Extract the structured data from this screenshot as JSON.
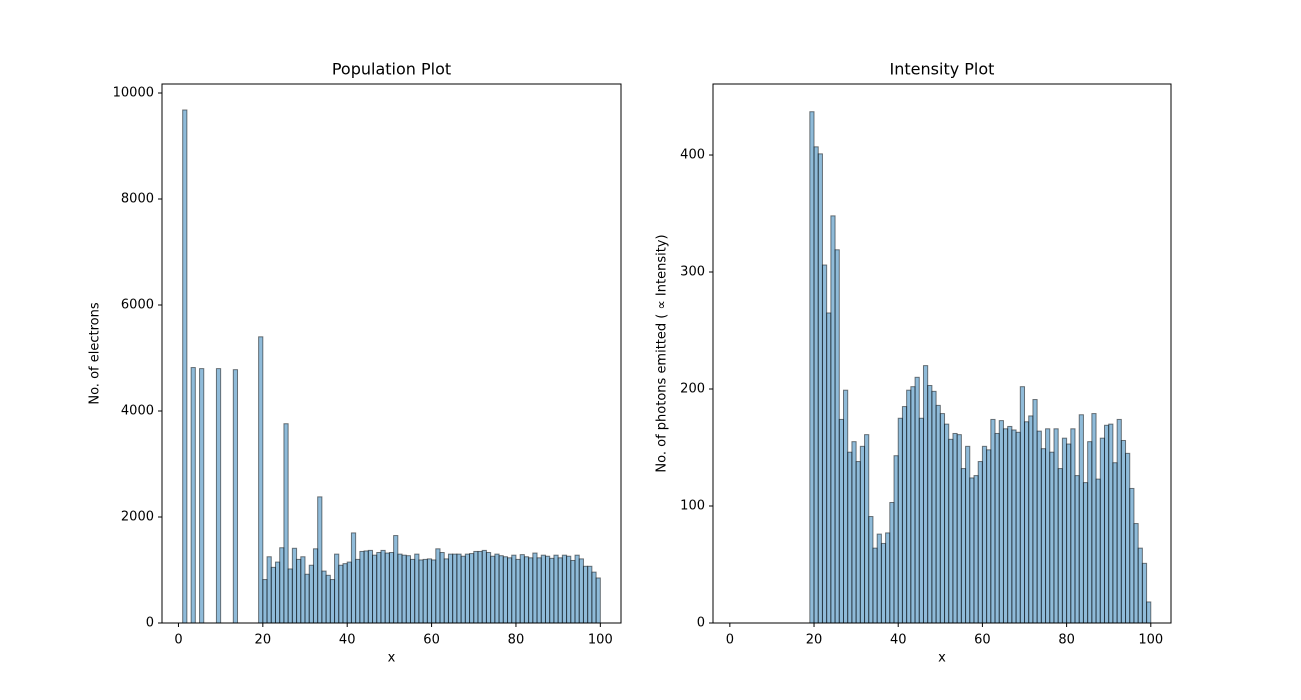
{
  "chart_data": [
    {
      "type": "histogram",
      "title": "Population Plot",
      "xlabel": "x",
      "ylabel": "No. of electrons",
      "bins": [
        0,
        1,
        2,
        3,
        4,
        5,
        6,
        7,
        8,
        9,
        10,
        11,
        12,
        13,
        14,
        15,
        16,
        17,
        18,
        19,
        20,
        21,
        22,
        23,
        24,
        25,
        26,
        27,
        28,
        29,
        30,
        31,
        32,
        33,
        34,
        35,
        36,
        37,
        38,
        39,
        40,
        41,
        42,
        43,
        44,
        45,
        46,
        47,
        48,
        49,
        50,
        51,
        52,
        53,
        54,
        55,
        56,
        57,
        58,
        59,
        60,
        61,
        62,
        63,
        64,
        65,
        66,
        67,
        68,
        69,
        70,
        71,
        72,
        73,
        74,
        75,
        76,
        77,
        78,
        79,
        80,
        81,
        82,
        83,
        84,
        85,
        86,
        87,
        88,
        89,
        90,
        91,
        92,
        93,
        94,
        95,
        96,
        97,
        98,
        99,
        100
      ],
      "values": [
        0,
        9680,
        0,
        4820,
        0,
        4800,
        0,
        0,
        0,
        4800,
        0,
        0,
        0,
        4780,
        0,
        0,
        0,
        0,
        0,
        5400,
        820,
        1250,
        1050,
        1150,
        1420,
        3760,
        1020,
        1410,
        1200,
        1250,
        920,
        1090,
        1400,
        2380,
        980,
        900,
        820,
        1300,
        1090,
        1120,
        1150,
        1700,
        1200,
        1350,
        1360,
        1370,
        1280,
        1330,
        1370,
        1320,
        1330,
        1650,
        1300,
        1280,
        1270,
        1200,
        1300,
        1190,
        1200,
        1210,
        1190,
        1400,
        1330,
        1210,
        1300,
        1300,
        1300,
        1260,
        1300,
        1310,
        1350,
        1350,
        1370,
        1330,
        1260,
        1300,
        1270,
        1250,
        1230,
        1280,
        1200,
        1290,
        1250,
        1230,
        1320,
        1230,
        1280,
        1260,
        1220,
        1280,
        1230,
        1280,
        1260,
        1180,
        1280,
        1210,
        1070,
        1070,
        960,
        850
      ],
      "color": "#1f77b4",
      "alpha": 0.5,
      "edgecolor": "#000000",
      "xlim": [
        -3.9,
        104.9
      ],
      "xticks": [
        0,
        20,
        40,
        60,
        80,
        100
      ],
      "ylim": [
        0,
        10170
      ],
      "yticks": [
        0,
        2000,
        4000,
        6000,
        8000,
        10000
      ]
    },
    {
      "type": "histogram",
      "title": "Intensity Plot",
      "xlabel": "x",
      "ylabel": "No. of photons emitted ( ∝  Intensity)",
      "bins": [
        0,
        1,
        2,
        3,
        4,
        5,
        6,
        7,
        8,
        9,
        10,
        11,
        12,
        13,
        14,
        15,
        16,
        17,
        18,
        19,
        20,
        21,
        22,
        23,
        24,
        25,
        26,
        27,
        28,
        29,
        30,
        31,
        32,
        33,
        34,
        35,
        36,
        37,
        38,
        39,
        40,
        41,
        42,
        43,
        44,
        45,
        46,
        47,
        48,
        49,
        50,
        51,
        52,
        53,
        54,
        55,
        56,
        57,
        58,
        59,
        60,
        61,
        62,
        63,
        64,
        65,
        66,
        67,
        68,
        69,
        70,
        71,
        72,
        73,
        74,
        75,
        76,
        77,
        78,
        79,
        80,
        81,
        82,
        83,
        84,
        85,
        86,
        87,
        88,
        89,
        90,
        91,
        92,
        93,
        94,
        95,
        96,
        97,
        98,
        99,
        100
      ],
      "values": [
        0,
        0,
        0,
        0,
        0,
        0,
        0,
        0,
        0,
        0,
        0,
        0,
        0,
        0,
        0,
        0,
        0,
        0,
        0,
        437,
        407,
        401,
        306,
        265,
        348,
        319,
        174,
        199,
        146,
        155,
        138,
        151,
        161,
        91,
        64,
        76,
        68,
        77,
        103,
        143,
        175,
        185,
        199,
        202,
        210,
        175,
        220,
        203,
        198,
        186,
        179,
        170,
        157,
        162,
        161,
        132,
        151,
        124,
        126,
        138,
        151,
        148,
        174,
        162,
        173,
        166,
        168,
        165,
        163,
        202,
        172,
        177,
        191,
        164,
        149,
        166,
        146,
        166,
        132,
        158,
        153,
        166,
        126,
        178,
        120,
        155,
        179,
        123,
        158,
        169,
        170,
        137,
        174,
        156,
        145,
        115,
        85,
        64,
        51,
        18
      ],
      "color": "#1f77b4",
      "alpha": 0.5,
      "edgecolor": "#000000",
      "xlim": [
        -4.0,
        104.8
      ],
      "xticks": [
        0,
        20,
        40,
        60,
        80,
        100
      ],
      "ylim": [
        0,
        460.7
      ],
      "yticks": [
        0,
        100,
        200,
        300,
        400
      ]
    }
  ]
}
